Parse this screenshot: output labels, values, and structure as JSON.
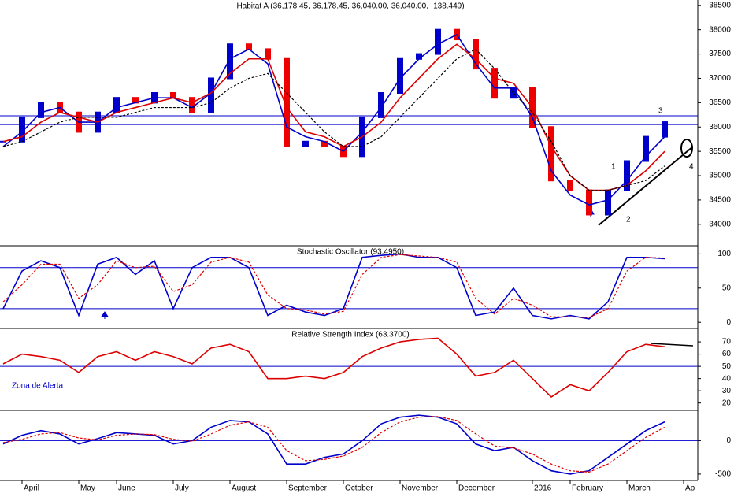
{
  "chart_data": [
    {
      "type": "line",
      "title": "Habitat A (36,178.45, 36,178.45, 36,040.00, 36,040.00, -138.449)",
      "ylim": [
        33560,
        38610
      ],
      "yticks": [
        34000,
        34500,
        35000,
        35500,
        36000,
        36500,
        37000,
        37500,
        38000,
        38500
      ],
      "hlines": [
        36230,
        36050
      ],
      "bars": {
        "up_color": "#0000cc",
        "down_color": "#ee0000",
        "values": [
          35700,
          36200,
          36500,
          36300,
          35900,
          36300,
          36600,
          36500,
          36700,
          36600,
          36300,
          37000,
          37700,
          37600,
          37400,
          35600,
          35700,
          35600,
          35400,
          36200,
          36700,
          37400,
          37500,
          38000,
          37800,
          37200,
          36600,
          36800,
          36000,
          34900,
          34700,
          34200,
          34700,
          35300,
          35800,
          36100,
          null
        ]
      },
      "series": [
        {
          "color": "#0000cc",
          "values": [
            35600,
            35900,
            36300,
            36400,
            36100,
            36100,
            36400,
            36500,
            36600,
            36600,
            36400,
            36700,
            37400,
            37600,
            37300,
            36000,
            35800,
            35700,
            35500,
            35900,
            36400,
            37000,
            37400,
            37700,
            37900,
            37300,
            36800,
            36800,
            36200,
            35100,
            34600,
            34400,
            34500,
            34900,
            35400,
            35800,
            null
          ]
        },
        {
          "color": "#dd0000",
          "values": [
            35700,
            35800,
            36100,
            36300,
            36200,
            36100,
            36300,
            36400,
            36500,
            36600,
            36500,
            36700,
            37100,
            37400,
            37400,
            36400,
            35900,
            35800,
            35600,
            35800,
            36100,
            36600,
            37000,
            37400,
            37700,
            37400,
            37000,
            36900,
            36400,
            35600,
            35000,
            34700,
            34700,
            34800,
            35100,
            35500,
            null
          ]
        },
        {
          "color": "#000000",
          "dash": true,
          "values": [
            35600,
            35700,
            35900,
            36100,
            36200,
            36200,
            36200,
            36300,
            36400,
            36400,
            36400,
            36500,
            36800,
            37000,
            37100,
            36700,
            36300,
            35900,
            35600,
            35600,
            35800,
            36200,
            36600,
            37000,
            37400,
            37600,
            37200,
            36700,
            36300,
            35700,
            35000,
            34700,
            34700,
            34800,
            34900,
            35200,
            null
          ]
        }
      ],
      "annotations": [
        "1",
        "2",
        "3",
        "4"
      ]
    },
    {
      "type": "line",
      "title": "Stochastic Oscillator (93.4950)",
      "ylim": [
        -9,
        112
      ],
      "yticks": [
        0,
        50,
        100
      ],
      "hlines": [
        80,
        20
      ],
      "series": [
        {
          "color": "#0000cc",
          "values": [
            20,
            75,
            90,
            80,
            10,
            85,
            95,
            70,
            90,
            20,
            80,
            95,
            95,
            80,
            10,
            25,
            15,
            10,
            20,
            95,
            98,
            100,
            95,
            95,
            80,
            10,
            15,
            50,
            10,
            5,
            10,
            5,
            30,
            95,
            95,
            93,
            null
          ]
        },
        {
          "color": "#dd0000",
          "dash": true,
          "values": [
            30,
            55,
            85,
            85,
            35,
            55,
            90,
            80,
            82,
            45,
            55,
            88,
            95,
            88,
            40,
            20,
            18,
            12,
            16,
            70,
            95,
            99,
            97,
            95,
            88,
            35,
            12,
            35,
            25,
            8,
            8,
            7,
            20,
            75,
            95,
            94,
            null
          ]
        }
      ]
    },
    {
      "type": "line",
      "title": "Relative Strength Index (63.3700)",
      "ylim": [
        14,
        81
      ],
      "yticks": [
        20,
        30,
        40,
        50,
        60,
        70
      ],
      "hlines": [
        50
      ],
      "series": [
        {
          "color": "#dd0000",
          "values": [
            52,
            60,
            58,
            55,
            45,
            58,
            62,
            55,
            62,
            58,
            52,
            65,
            68,
            62,
            40,
            40,
            42,
            40,
            45,
            58,
            65,
            70,
            72,
            73,
            60,
            42,
            45,
            55,
            40,
            25,
            35,
            30,
            45,
            62,
            68,
            66,
            null
          ]
        }
      ],
      "annotations": [
        "Zona de Alerta"
      ]
    },
    {
      "type": "line",
      "ylim": [
        -595,
        452
      ],
      "yticks": [
        -500,
        0
      ],
      "hlines": [
        0
      ],
      "categories": [
        null,
        "April",
        null,
        null,
        "May",
        null,
        "June",
        null,
        null,
        "July",
        null,
        null,
        "August",
        null,
        null,
        "September",
        null,
        null,
        "October",
        null,
        null,
        "November",
        null,
        null,
        "December",
        null,
        null,
        null,
        "2016",
        null,
        "February",
        null,
        null,
        "March",
        null,
        null,
        "Ap"
      ],
      "series": [
        {
          "color": "#0000cc",
          "values": [
            -50,
            80,
            150,
            100,
            -50,
            30,
            120,
            100,
            80,
            -50,
            0,
            200,
            300,
            280,
            100,
            -350,
            -350,
            -250,
            -200,
            0,
            250,
            350,
            380,
            350,
            250,
            -50,
            -150,
            -100,
            -300,
            -450,
            -500,
            -450,
            -250,
            -50,
            150,
            280,
            null
          ]
        },
        {
          "color": "#dd0000",
          "dash": true,
          "values": [
            -30,
            20,
            100,
            120,
            40,
            10,
            80,
            100,
            90,
            20,
            -10,
            100,
            230,
            280,
            200,
            -150,
            -300,
            -280,
            -230,
            -100,
            120,
            280,
            350,
            360,
            300,
            100,
            -80,
            -110,
            -200,
            -350,
            -450,
            -470,
            -350,
            -150,
            50,
            200,
            null
          ]
        }
      ]
    }
  ]
}
